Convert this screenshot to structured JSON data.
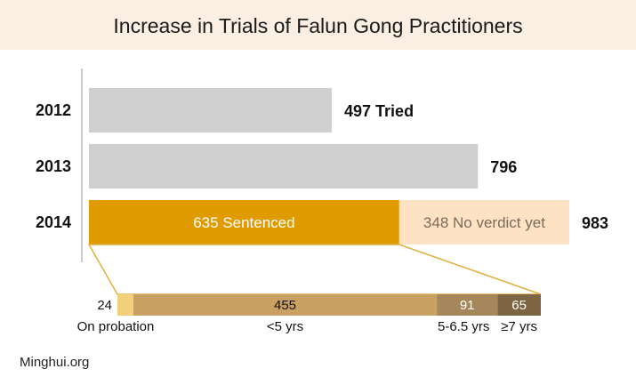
{
  "title": "Increase in Trials of Falun Gong Practitioners",
  "source": "Minghui.org",
  "colors": {
    "title_band": "#fbeee2",
    "tried_bar": "#cfcfcf",
    "sentenced": "#e09b00",
    "no_verdict": "#fde3c4",
    "no_verdict_text": "#7a6a5a",
    "probation": "#f2cf7a",
    "under5": "#c9a163",
    "five_to_6_5": "#a5875b",
    "seven_plus": "#7d6543",
    "connector": "#e0b040"
  },
  "chart_data": [
    {
      "type": "bar",
      "orientation": "horizontal",
      "stacked": true,
      "categories": [
        "2012",
        "2013",
        "2014"
      ],
      "series": [
        {
          "name": "Tried",
          "values": [
            497,
            796,
            null
          ]
        },
        {
          "name": "Sentenced",
          "values": [
            null,
            null,
            635
          ]
        },
        {
          "name": "No verdict yet",
          "values": [
            null,
            null,
            348
          ]
        }
      ],
      "totals": [
        497,
        796,
        983
      ],
      "labels": {
        "total_2012": "497 Tried",
        "total_2013": "796",
        "total_2014": "983",
        "sentenced": "635 Sentenced",
        "no_verdict": "348 No verdict yet"
      },
      "xlim": [
        0,
        1000
      ],
      "grid": false,
      "legend": "none"
    },
    {
      "type": "bar",
      "orientation": "horizontal",
      "stacked": true,
      "categories": [
        "On probation",
        "<5 yrs",
        "5-6.5 yrs",
        "≥7 yrs"
      ],
      "values": [
        24,
        455,
        91,
        65
      ],
      "value_labels": [
        "24",
        "455",
        "91",
        "65"
      ],
      "total": 635,
      "grid": false,
      "legend": "none"
    }
  ]
}
